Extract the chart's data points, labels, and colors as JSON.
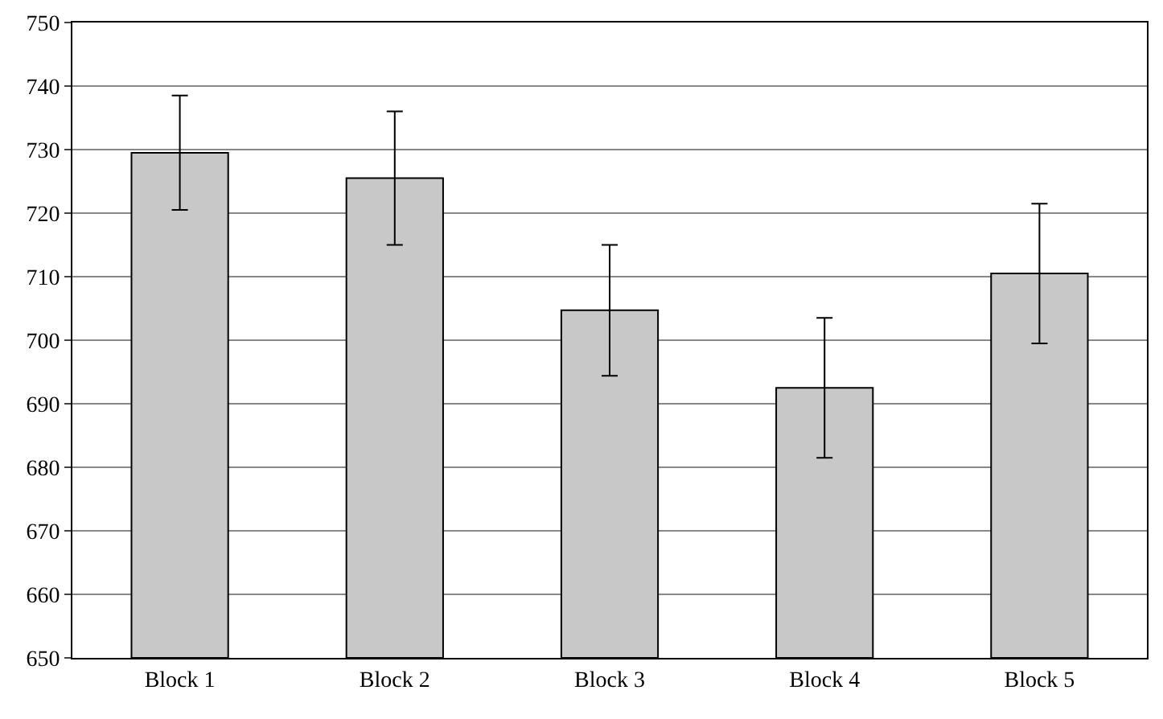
{
  "chart_data": {
    "type": "bar",
    "categories": [
      "Block 1",
      "Block 2",
      "Block 3",
      "Block 4",
      "Block 5"
    ],
    "values": [
      729.5,
      725.5,
      704.7,
      692.5,
      710.5
    ],
    "errors": [
      9,
      10.5,
      10.3,
      11,
      11
    ],
    "color": "#c8c8c8",
    "ylim": [
      650,
      750
    ],
    "yticks": [
      650,
      660,
      670,
      680,
      690,
      700,
      710,
      720,
      730,
      740,
      750
    ],
    "grid": "y"
  }
}
